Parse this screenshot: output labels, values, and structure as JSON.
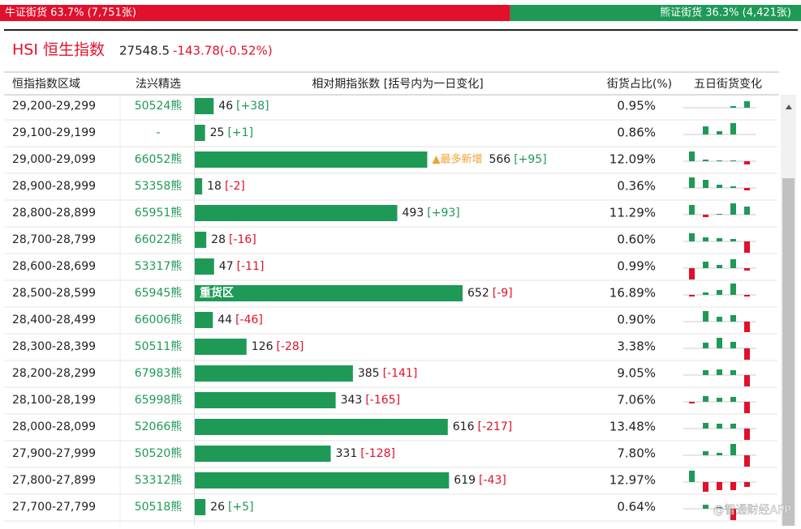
{
  "summary": {
    "bull": {
      "text": "牛证街货 63.7% (7,751张)",
      "share": 63.7
    },
    "bear": {
      "text": "熊证街货 36.3% (4,421张)",
      "share": 36.3
    }
  },
  "header": {
    "index_name": "HSI 恒生指数",
    "price": "27548.5",
    "change": "-143.78(-0.52%)"
  },
  "table": {
    "columns": [
      "恒指指数区域",
      "法兴精选",
      "相对期指张数 [括号内为一日变化]",
      "街货占比(%)",
      "五日街货变化"
    ],
    "rows": [
      {
        "range": "29,200-29,299",
        "pick": "50524熊",
        "count": 46,
        "change": 38,
        "change_label": "[+38]",
        "share": "0.95%",
        "five_day": [
          0,
          0,
          0,
          2,
          8
        ]
      },
      {
        "range": "29,100-29,199",
        "pick": "-",
        "count": 25,
        "change": 1,
        "change_label": "[+1]",
        "share": "0.86%",
        "five_day": [
          0,
          10,
          4,
          14,
          0
        ]
      },
      {
        "range": "29,000-29,099",
        "pick": "66052熊",
        "count": 566,
        "change": 95,
        "change_label": "[+95]",
        "share": "12.09%",
        "note": "▲最多新增",
        "five_day": [
          12,
          2,
          1,
          1,
          -4
        ]
      },
      {
        "range": "28,900-28,999",
        "pick": "53358熊",
        "count": 18,
        "change": -2,
        "change_label": "[-2]",
        "share": "0.36%",
        "five_day": [
          13,
          10,
          4,
          2,
          -3
        ]
      },
      {
        "range": "28,800-28,899",
        "pick": "65951熊",
        "count": 493,
        "change": 93,
        "change_label": "[+93]",
        "share": "11.29%",
        "five_day": [
          12,
          -3,
          1,
          14,
          10
        ]
      },
      {
        "range": "28,700-28,799",
        "pick": "66022熊",
        "count": 28,
        "change": -16,
        "change_label": "[-16]",
        "share": "0.60%",
        "five_day": [
          10,
          5,
          4,
          3,
          -14
        ]
      },
      {
        "range": "28,600-28,699",
        "pick": "53317熊",
        "count": 47,
        "change": -11,
        "change_label": "[-11]",
        "share": "0.99%",
        "five_day": [
          -14,
          8,
          4,
          11,
          -3
        ]
      },
      {
        "range": "28,500-28,599",
        "pick": "65945熊",
        "count": 652,
        "change": -9,
        "change_label": "[-9]",
        "share": "16.89%",
        "tag": "重货区",
        "five_day": [
          -2,
          3,
          6,
          14,
          -2
        ]
      },
      {
        "range": "28,400-28,499",
        "pick": "66006熊",
        "count": 44,
        "change": -46,
        "change_label": "[-46]",
        "share": "0.90%",
        "five_day": [
          0,
          13,
          6,
          8,
          -13
        ]
      },
      {
        "range": "28,300-28,399",
        "pick": "50511熊",
        "count": 126,
        "change": -28,
        "change_label": "[-28]",
        "share": "3.38%",
        "five_day": [
          0,
          7,
          13,
          8,
          -14
        ]
      },
      {
        "range": "28,200-28,299",
        "pick": "67983熊",
        "count": 385,
        "change": -141,
        "change_label": "[-141]",
        "share": "9.05%",
        "five_day": [
          0,
          6,
          7,
          6,
          -14
        ]
      },
      {
        "range": "28,100-28,199",
        "pick": "65998熊",
        "count": 343,
        "change": -165,
        "change_label": "[-165]",
        "share": "7.06%",
        "five_day": [
          -2,
          7,
          5,
          6,
          -14
        ]
      },
      {
        "range": "28,000-28,099",
        "pick": "52066熊",
        "count": 616,
        "change": -217,
        "change_label": "[-217]",
        "share": "13.48%",
        "five_day": [
          0,
          7,
          6,
          6,
          -14
        ]
      },
      {
        "range": "27,900-27,999",
        "pick": "50520熊",
        "count": 331,
        "change": -128,
        "change_label": "[-128]",
        "share": "7.80%",
        "five_day": [
          0,
          5,
          3,
          14,
          -14
        ]
      },
      {
        "range": "27,800-27,899",
        "pick": "53312熊",
        "count": 619,
        "change": -43,
        "change_label": "[-43]",
        "share": "12.97%",
        "five_day": [
          14,
          -12,
          -10,
          -10,
          -6
        ]
      },
      {
        "range": "27,700-27,799",
        "pick": "50518熊",
        "count": 26,
        "change": 5,
        "change_label": "[+5]",
        "share": "0.64%",
        "five_day": [
          0,
          5,
          2,
          -14,
          0
        ]
      }
    ]
  },
  "watermark": "@智通财经APP"
}
